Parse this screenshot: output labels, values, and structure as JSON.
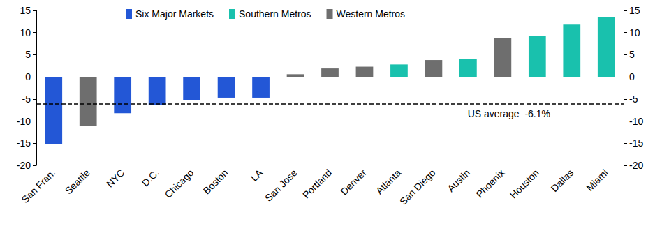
{
  "chart_data": {
    "type": "bar",
    "categories": [
      "San Fran.",
      "Seattle",
      "NYC",
      "D.C.",
      "Chicago",
      "Boston",
      "LA",
      "San Jose",
      "Portland",
      "Denver",
      "Atlanta",
      "San Diego",
      "Austin",
      "Phoenix",
      "Houston",
      "Dallas",
      "Miami"
    ],
    "series": [
      {
        "name": "Six Major Markets",
        "color": "#2357d6",
        "values": [
          -15.2,
          null,
          -8.2,
          -6.4,
          -5.3,
          -4.7,
          -4.7,
          null,
          null,
          null,
          null,
          null,
          null,
          null,
          null,
          null,
          null
        ]
      },
      {
        "name": "Southern Metros",
        "color": "#19c1ad",
        "values": [
          null,
          null,
          null,
          null,
          null,
          null,
          null,
          null,
          null,
          null,
          2.8,
          null,
          4.1,
          null,
          9.3,
          11.8,
          13.5
        ]
      },
      {
        "name": "Western Metros",
        "color": "#6e6e6e",
        "values": [
          null,
          -11.1,
          null,
          null,
          null,
          null,
          null,
          0.6,
          1.9,
          2.3,
          null,
          3.8,
          null,
          8.8,
          null,
          null,
          null
        ]
      }
    ],
    "reference_lines": [
      {
        "value": -6.1,
        "label": "US average  -6.1%",
        "line_style": "dashed"
      }
    ],
    "ylim": [
      -20,
      15
    ],
    "yticks": [
      -20,
      -15,
      -10,
      -5,
      0,
      5,
      10,
      15
    ],
    "y2lim": [
      -20,
      15
    ],
    "y2ticks": [
      -20,
      -15,
      -10,
      -5,
      0,
      5,
      10,
      15
    ],
    "grid": false,
    "legend": "top"
  }
}
